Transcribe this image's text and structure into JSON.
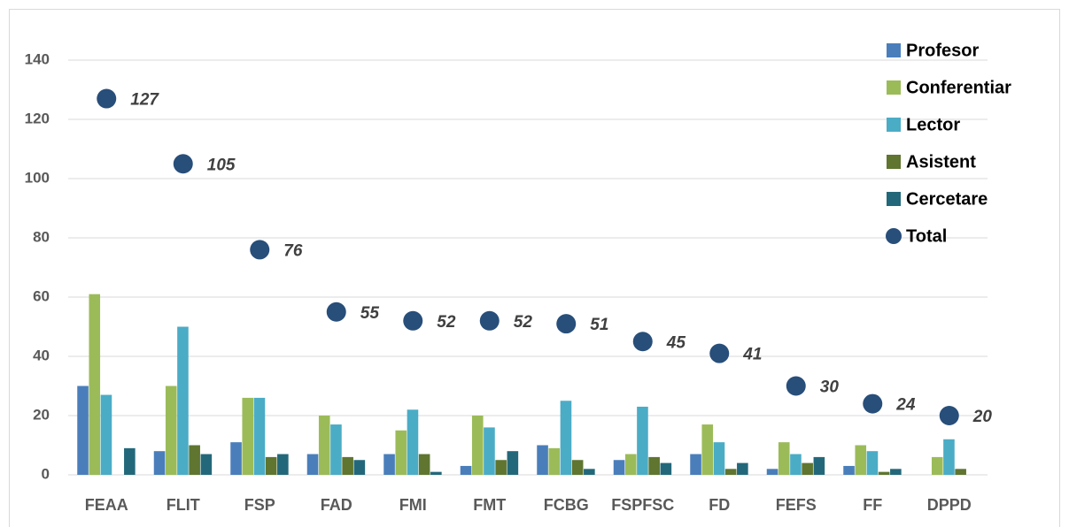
{
  "chart_data": {
    "type": "bar",
    "categories": [
      "FEAA",
      "FLIT",
      "FSP",
      "FAD",
      "FMI",
      "FMT",
      "FCBG",
      "FSPFSC",
      "FD",
      "FEFS",
      "FF",
      "DPPD"
    ],
    "series": [
      {
        "name": "Profesor",
        "color": "#4a7ebb",
        "values": [
          30,
          8,
          11,
          7,
          7,
          3,
          10,
          5,
          7,
          2,
          3,
          0
        ]
      },
      {
        "name": "Conferentiar",
        "color": "#9bbb59",
        "values": [
          61,
          30,
          26,
          20,
          15,
          20,
          9,
          7,
          17,
          11,
          10,
          6
        ]
      },
      {
        "name": "Lector",
        "color": "#4bacc6",
        "values": [
          27,
          50,
          26,
          17,
          22,
          16,
          25,
          23,
          11,
          7,
          8,
          12
        ]
      },
      {
        "name": "Asistent",
        "color": "#5f7530",
        "values": [
          0,
          10,
          6,
          6,
          7,
          5,
          5,
          6,
          2,
          4,
          1,
          2
        ]
      },
      {
        "name": "Cercetare",
        "color": "#23687a",
        "values": [
          9,
          7,
          7,
          5,
          1,
          8,
          2,
          4,
          4,
          6,
          2,
          0
        ]
      },
      {
        "name": "Total",
        "color": "#284e7a",
        "type": "scatter",
        "values": [
          127,
          105,
          76,
          55,
          52,
          52,
          51,
          45,
          41,
          30,
          24,
          20
        ]
      }
    ],
    "ylim": [
      0,
      140
    ],
    "yticks": [
      0,
      20,
      40,
      60,
      80,
      100,
      120,
      140
    ],
    "grid": true,
    "legend": "top-right"
  }
}
